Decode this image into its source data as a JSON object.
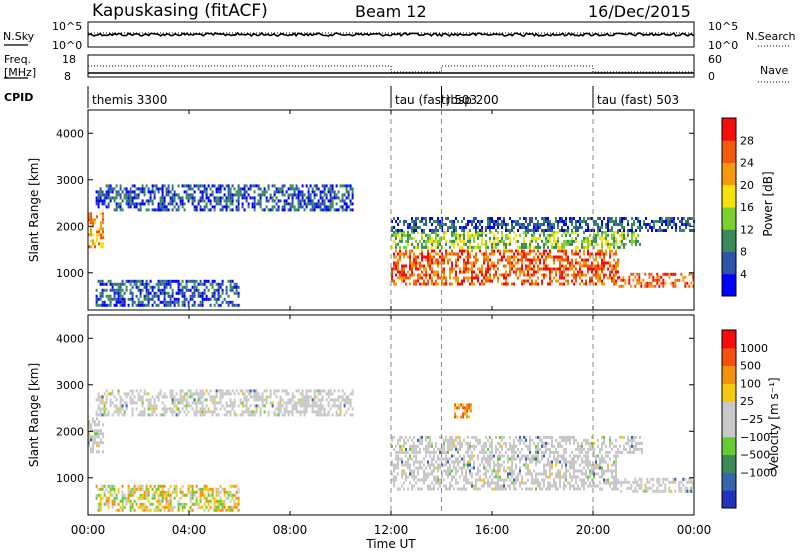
{
  "header": {
    "station": "Kapuskasing (fitACF)",
    "beam": "Beam 12",
    "date": "16/Dec/2015"
  },
  "noise_panel": {
    "left_label": "N.Sky",
    "left_ticks": [
      "10^5",
      "10^0"
    ],
    "right_label": "N.Search",
    "right_ticks": [
      "10^5",
      "10^0"
    ]
  },
  "freq_panel": {
    "left_label_1": "Freq.",
    "left_label_2": "[MHz]",
    "left_ticks": [
      "18",
      "8"
    ],
    "right_label": "Nave",
    "right_ticks": [
      "60",
      "0"
    ]
  },
  "cpid": {
    "label": "CPID",
    "segments": [
      {
        "name": "themis 3300",
        "start_hour": 0
      },
      {
        "name": "tau (fast) 503",
        "start_hour": 12
      },
      {
        "name": "rbsp 200",
        "start_hour": 14
      },
      {
        "name": "tau (fast) 503",
        "start_hour": 20
      }
    ]
  },
  "chart_data": [
    {
      "type": "heatmap",
      "quantity": "Power",
      "ylabel": "Slant Range [km]",
      "xlabel": "Time UT",
      "xlim_hours": [
        0,
        24
      ],
      "ylim": [
        200,
        4500
      ],
      "yticks": [
        "1000",
        "2000",
        "3000",
        "4000"
      ],
      "colorbar": {
        "label": "Power [dB]",
        "ticks": [
          "4",
          "8",
          "12",
          "16",
          "20",
          "24",
          "28"
        ],
        "colors": [
          "#0000ff",
          "#2c55a8",
          "#3a8a5a",
          "#7dd12e",
          "#f5e20c",
          "#f59a0c",
          "#f55a0c",
          "#f50c0c"
        ]
      },
      "echo_regions": [
        {
          "t0": 0.0,
          "t1": 0.6,
          "r0": 1500,
          "r1": 2300,
          "level": 5
        },
        {
          "t0": 0.3,
          "t1": 10.5,
          "r0": 2350,
          "r1": 2900,
          "level": 1
        },
        {
          "t0": 0.3,
          "t1": 6.0,
          "r0": 300,
          "r1": 850,
          "level": 1
        },
        {
          "t0": 12.0,
          "t1": 21.0,
          "r0": 700,
          "r1": 1500,
          "level": 6
        },
        {
          "t0": 12.0,
          "t1": 22.0,
          "r0": 1500,
          "r1": 1900,
          "level": 3
        },
        {
          "t0": 21.0,
          "t1": 24.0,
          "r0": 650,
          "r1": 1000,
          "level": 6
        },
        {
          "t0": 12.0,
          "t1": 24.0,
          "r0": 1900,
          "r1": 2200,
          "level": 1
        }
      ]
    },
    {
      "type": "heatmap",
      "quantity": "Velocity",
      "ylabel": "Slant Range [km]",
      "xlabel": "Time UT",
      "xlim_hours": [
        0,
        24
      ],
      "ylim": [
        200,
        4500
      ],
      "yticks": [
        "1000",
        "2000",
        "3000",
        "4000"
      ],
      "colorbar": {
        "label": "Velocity [m s⁻¹]",
        "ticks": [
          "1000",
          "500",
          "100",
          "25",
          "−25",
          "−100",
          "−500",
          "−1000"
        ],
        "colors": [
          "#2233bb",
          "#3366aa",
          "#3a8a5a",
          "#66cc33",
          "#c8c8c8",
          "#c8c8c8",
          "#f5c80c",
          "#f5900c",
          "#f5500c",
          "#f50c0c"
        ]
      },
      "echo_regions": [
        {
          "t0": 0.0,
          "t1": 0.6,
          "r0": 1500,
          "r1": 2300,
          "velocity": 0
        },
        {
          "t0": 0.3,
          "t1": 10.5,
          "r0": 2350,
          "r1": 2900,
          "velocity": 0
        },
        {
          "t0": 0.3,
          "t1": 6.0,
          "r0": 300,
          "r1": 850,
          "velocity": -100
        },
        {
          "t0": 12.0,
          "t1": 21.0,
          "r0": 700,
          "r1": 1500,
          "velocity": 0
        },
        {
          "t0": 12.0,
          "t1": 22.0,
          "r0": 1500,
          "r1": 1900,
          "velocity": 0
        },
        {
          "t0": 14.5,
          "t1": 15.2,
          "r0": 2300,
          "r1": 2600,
          "velocity": -300
        },
        {
          "t0": 21.0,
          "t1": 24.0,
          "r0": 650,
          "r1": 1000,
          "velocity": 0
        }
      ]
    }
  ],
  "xaxis": {
    "ticks": [
      "00:00",
      "04:00",
      "08:00",
      "12:00",
      "16:00",
      "20:00",
      "00:00"
    ],
    "label": "Time UT"
  }
}
